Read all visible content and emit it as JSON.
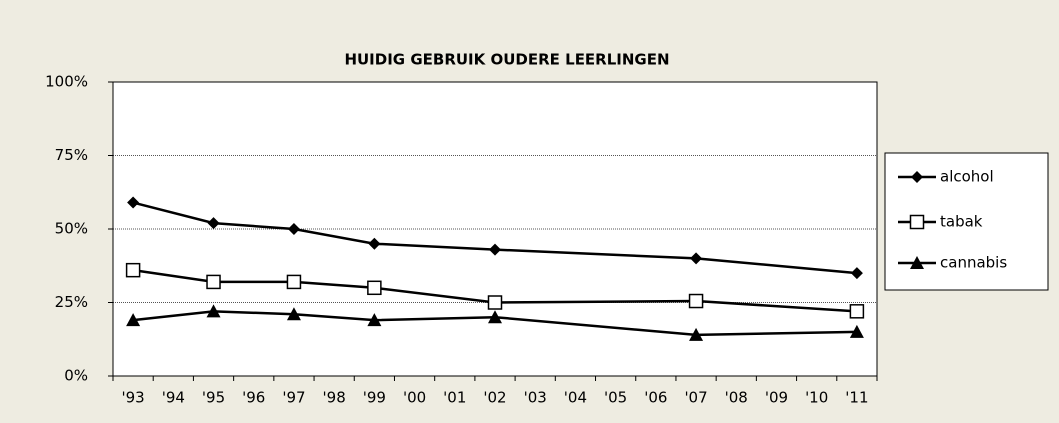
{
  "chart_data": {
    "type": "line",
    "title": "HUIDIG GEBRUIK OUDERE LEERLINGEN",
    "x": [
      1993,
      1995,
      1997,
      1999,
      2002,
      2007,
      2011
    ],
    "xlim": [
      1992.5,
      2011.5
    ],
    "xticks": [
      {
        "value": 1993,
        "label": "'93"
      },
      {
        "value": 1994,
        "label": "'94"
      },
      {
        "value": 1995,
        "label": "'95"
      },
      {
        "value": 1996,
        "label": "'96"
      },
      {
        "value": 1997,
        "label": "'97"
      },
      {
        "value": 1998,
        "label": "'98"
      },
      {
        "value": 1999,
        "label": "'99"
      },
      {
        "value": 2000,
        "label": "'00"
      },
      {
        "value": 2001,
        "label": "'01"
      },
      {
        "value": 2002,
        "label": "'02"
      },
      {
        "value": 2003,
        "label": "'03"
      },
      {
        "value": 2004,
        "label": "'04"
      },
      {
        "value": 2005,
        "label": "'05"
      },
      {
        "value": 2006,
        "label": "'06"
      },
      {
        "value": 2007,
        "label": "'07"
      },
      {
        "value": 2008,
        "label": "'08"
      },
      {
        "value": 2009,
        "label": "'09"
      },
      {
        "value": 2010,
        "label": "'10"
      },
      {
        "value": 2011,
        "label": "'11"
      }
    ],
    "ylim": [
      0,
      100
    ],
    "yticks": [
      {
        "value": 0,
        "label": "0%"
      },
      {
        "value": 25,
        "label": "25%"
      },
      {
        "value": 50,
        "label": "50%"
      },
      {
        "value": 75,
        "label": "75%"
      },
      {
        "value": 100,
        "label": "100%"
      }
    ],
    "grid": true,
    "legend": "right",
    "series": [
      {
        "name": "alcohol",
        "color": "#000000",
        "marker": "diamond",
        "values": [
          59,
          52,
          50,
          45,
          43,
          40,
          35
        ]
      },
      {
        "name": "tabak",
        "color": "#000000",
        "marker": "square",
        "values": [
          36,
          32,
          32,
          30,
          25,
          25.5,
          22
        ]
      },
      {
        "name": "cannabis",
        "color": "#000000",
        "marker": "triangle",
        "values": [
          19,
          22,
          21,
          19,
          20,
          14,
          15
        ]
      }
    ]
  }
}
